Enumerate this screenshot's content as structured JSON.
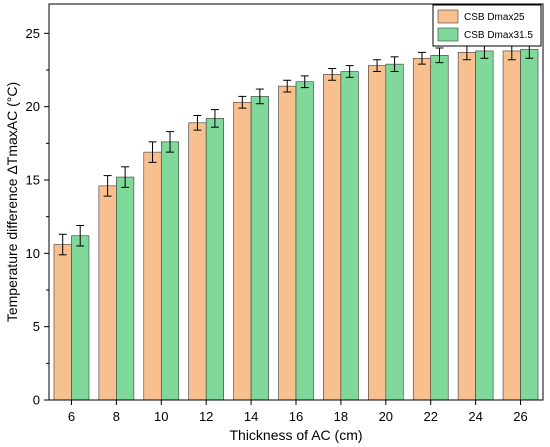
{
  "chart_data": {
    "type": "bar",
    "xlabel": "Thickness of AC (cm)",
    "ylabel": "Temperature difference ΔTmaxAC (°C)",
    "categories": [
      "6",
      "8",
      "10",
      "12",
      "14",
      "16",
      "18",
      "20",
      "22",
      "24",
      "26"
    ],
    "ylim": [
      0,
      27
    ],
    "yticks": [
      0,
      5,
      10,
      15,
      20,
      25
    ],
    "grid": false,
    "legend_position": "top-right",
    "error_bars": true,
    "series": [
      {
        "name": "CSB Dmax25",
        "color": "#f9c08f",
        "values": [
          10.6,
          14.6,
          16.9,
          18.9,
          20.3,
          21.4,
          22.2,
          22.8,
          23.3,
          23.7,
          23.8
        ],
        "errors": [
          0.7,
          0.7,
          0.7,
          0.5,
          0.4,
          0.4,
          0.4,
          0.4,
          0.4,
          0.5,
          0.6
        ]
      },
      {
        "name": "CSB Dmax31.5",
        "color": "#80d99a",
        "values": [
          11.2,
          15.2,
          17.6,
          19.2,
          20.7,
          21.7,
          22.4,
          22.9,
          23.5,
          23.8,
          23.9
        ],
        "errors": [
          0.7,
          0.7,
          0.7,
          0.6,
          0.5,
          0.4,
          0.4,
          0.5,
          0.5,
          0.5,
          0.6
        ]
      }
    ]
  }
}
